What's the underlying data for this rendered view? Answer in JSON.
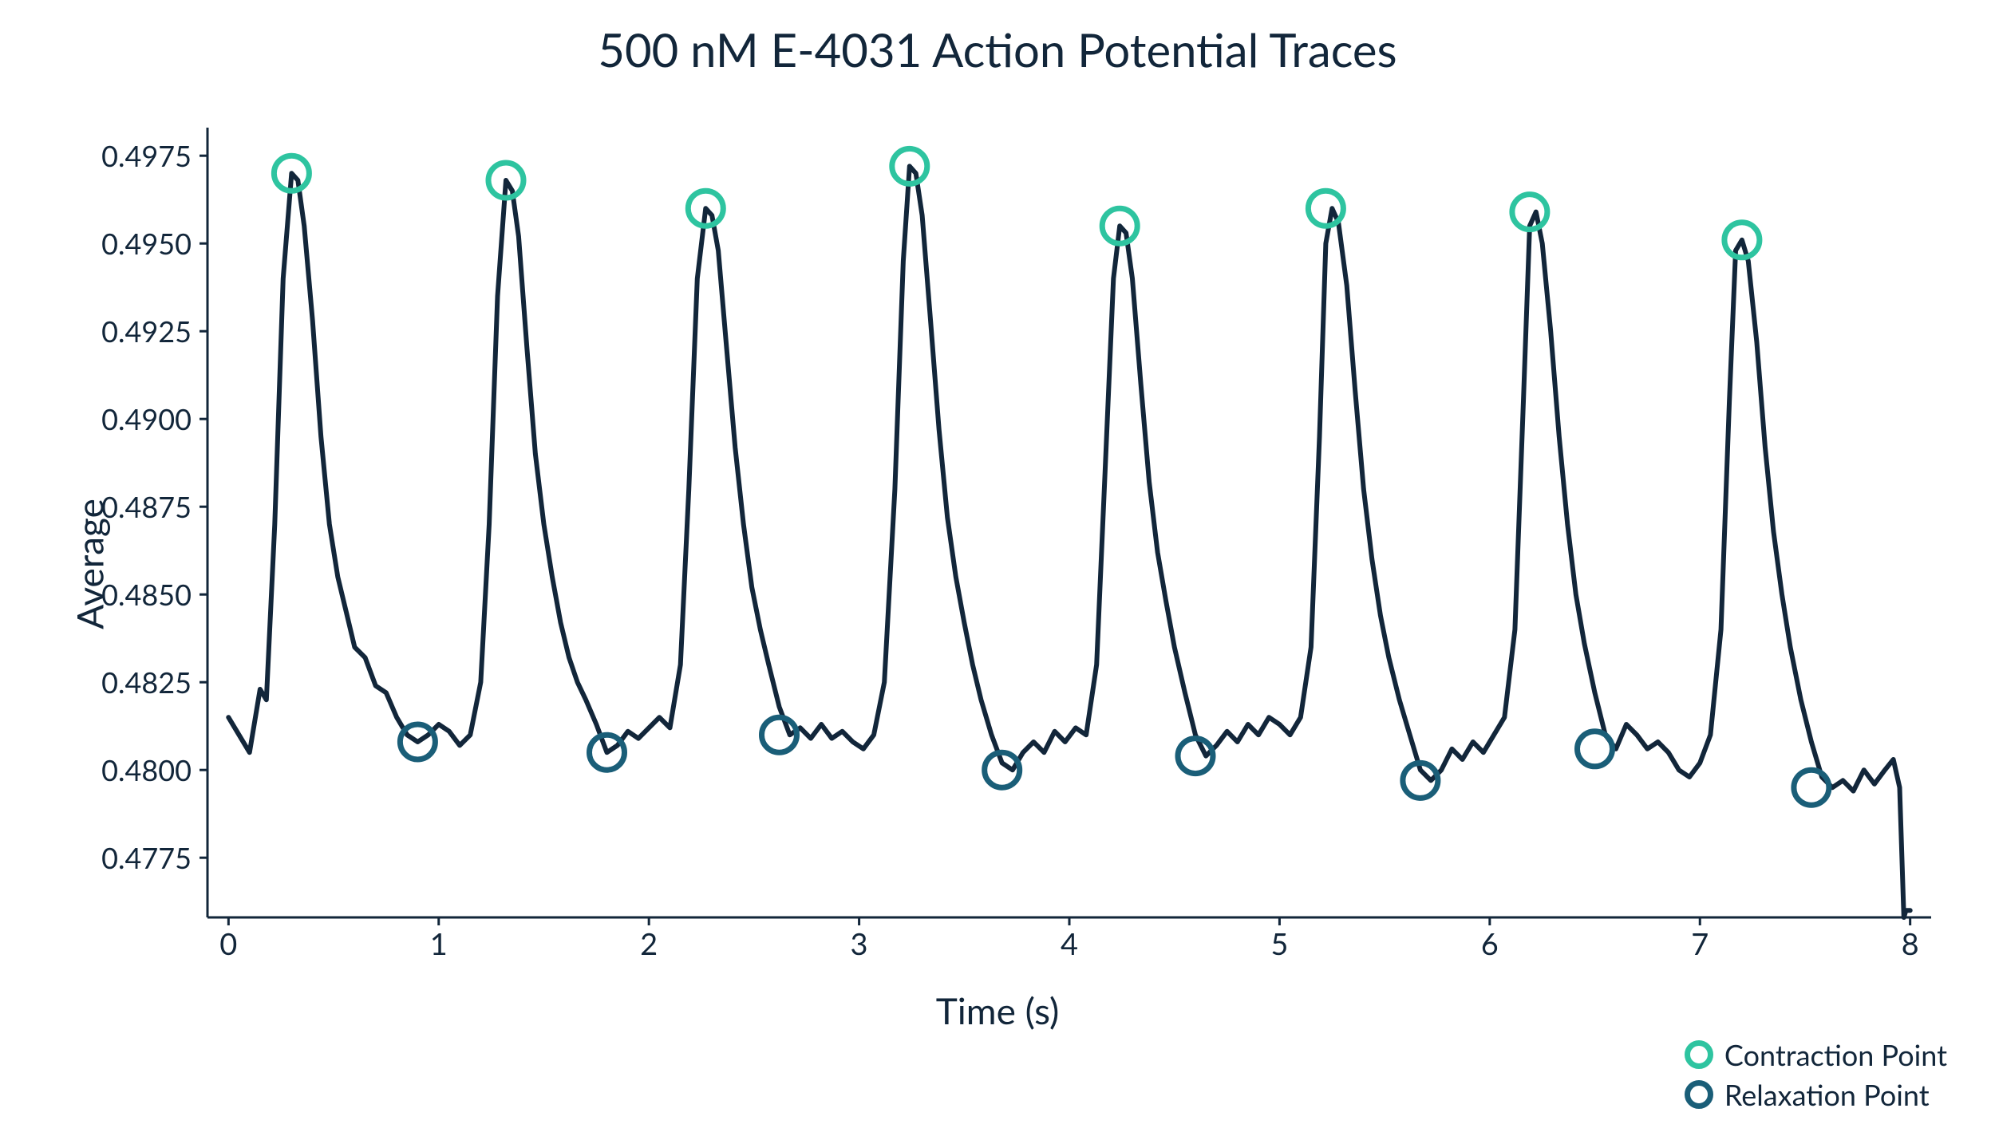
{
  "chart": {
    "type": "line",
    "title": "500 nM E-4031 Action Potential Traces",
    "title_fontsize": 58,
    "xlabel": "Time (s)",
    "ylabel": "Average",
    "label_fontsize": 46,
    "tick_fontsize": 36,
    "background_color": "#ffffff",
    "text_color": "#12263a",
    "axis_color": "#12263a",
    "line_color": "#12263a",
    "line_width": 6,
    "xlim": [
      -0.1,
      8.1
    ],
    "ylim": [
      0.4758,
      0.4983
    ],
    "xticks": [
      0,
      1,
      2,
      3,
      4,
      5,
      6,
      7,
      8
    ],
    "xtick_labels": [
      "0",
      "1",
      "2",
      "3",
      "4",
      "5",
      "6",
      "7",
      "8"
    ],
    "yticks": [
      0.4775,
      0.48,
      0.4825,
      0.485,
      0.4875,
      0.49,
      0.4925,
      0.495,
      0.4975
    ],
    "ytick_labels": [
      "0.4775",
      "0.4800",
      "0.4825",
      "0.4850",
      "0.4875",
      "0.4900",
      "0.4925",
      "0.4950",
      "0.4975"
    ],
    "tick_length": 10,
    "trace": {
      "x": [
        0.0,
        0.05,
        0.1,
        0.15,
        0.18,
        0.22,
        0.26,
        0.3,
        0.33,
        0.36,
        0.4,
        0.44,
        0.48,
        0.52,
        0.56,
        0.6,
        0.65,
        0.7,
        0.75,
        0.8,
        0.85,
        0.9,
        0.95,
        1.0,
        1.05,
        1.1,
        1.15,
        1.2,
        1.24,
        1.28,
        1.32,
        1.35,
        1.38,
        1.42,
        1.46,
        1.5,
        1.54,
        1.58,
        1.62,
        1.66,
        1.7,
        1.75,
        1.8,
        1.85,
        1.9,
        1.95,
        2.0,
        2.05,
        2.1,
        2.15,
        2.19,
        2.23,
        2.27,
        2.3,
        2.33,
        2.37,
        2.41,
        2.45,
        2.49,
        2.53,
        2.57,
        2.62,
        2.67,
        2.72,
        2.77,
        2.82,
        2.87,
        2.92,
        2.97,
        3.02,
        3.07,
        3.12,
        3.17,
        3.21,
        3.24,
        3.27,
        3.3,
        3.34,
        3.38,
        3.42,
        3.46,
        3.5,
        3.54,
        3.58,
        3.63,
        3.68,
        3.73,
        3.78,
        3.83,
        3.88,
        3.93,
        3.98,
        4.03,
        4.08,
        4.13,
        4.17,
        4.21,
        4.24,
        4.27,
        4.3,
        4.34,
        4.38,
        4.42,
        4.46,
        4.5,
        4.55,
        4.6,
        4.65,
        4.7,
        4.75,
        4.8,
        4.85,
        4.9,
        4.95,
        5.0,
        5.05,
        5.1,
        5.15,
        5.19,
        5.22,
        5.25,
        5.28,
        5.32,
        5.36,
        5.4,
        5.44,
        5.48,
        5.52,
        5.57,
        5.62,
        5.67,
        5.72,
        5.77,
        5.82,
        5.87,
        5.92,
        5.97,
        6.02,
        6.07,
        6.12,
        6.16,
        6.19,
        6.22,
        6.25,
        6.29,
        6.33,
        6.37,
        6.41,
        6.45,
        6.5,
        6.55,
        6.6,
        6.65,
        6.7,
        6.75,
        6.8,
        6.85,
        6.9,
        6.95,
        7.0,
        7.05,
        7.1,
        7.14,
        7.17,
        7.2,
        7.23,
        7.27,
        7.31,
        7.35,
        7.39,
        7.43,
        7.48,
        7.53,
        7.58,
        7.63,
        7.68,
        7.73,
        7.78,
        7.83,
        7.88,
        7.92,
        7.95,
        7.97,
        7.98,
        8.0
      ],
      "y": [
        0.4815,
        0.481,
        0.4805,
        0.4823,
        0.482,
        0.487,
        0.494,
        0.497,
        0.4968,
        0.4955,
        0.4928,
        0.4895,
        0.487,
        0.4855,
        0.4845,
        0.4835,
        0.4832,
        0.4824,
        0.4822,
        0.4815,
        0.481,
        0.4808,
        0.481,
        0.4813,
        0.4811,
        0.4807,
        0.481,
        0.4825,
        0.487,
        0.4935,
        0.4968,
        0.4965,
        0.4952,
        0.492,
        0.489,
        0.487,
        0.4855,
        0.4842,
        0.4832,
        0.4825,
        0.482,
        0.4813,
        0.4805,
        0.4807,
        0.4811,
        0.4809,
        0.4812,
        0.4815,
        0.4812,
        0.483,
        0.488,
        0.494,
        0.496,
        0.4958,
        0.4948,
        0.492,
        0.4892,
        0.487,
        0.4852,
        0.484,
        0.483,
        0.4818,
        0.481,
        0.4812,
        0.4809,
        0.4813,
        0.4809,
        0.4811,
        0.4808,
        0.4806,
        0.481,
        0.4825,
        0.488,
        0.4945,
        0.4972,
        0.497,
        0.4958,
        0.4928,
        0.4897,
        0.4872,
        0.4855,
        0.4842,
        0.483,
        0.482,
        0.481,
        0.4802,
        0.48,
        0.4805,
        0.4808,
        0.4805,
        0.4811,
        0.4808,
        0.4812,
        0.481,
        0.483,
        0.4885,
        0.494,
        0.4955,
        0.4953,
        0.494,
        0.491,
        0.4882,
        0.4862,
        0.4848,
        0.4835,
        0.4822,
        0.481,
        0.4804,
        0.4807,
        0.4811,
        0.4808,
        0.4813,
        0.481,
        0.4815,
        0.4813,
        0.481,
        0.4815,
        0.4835,
        0.4895,
        0.495,
        0.496,
        0.4956,
        0.4938,
        0.4908,
        0.488,
        0.486,
        0.4844,
        0.4832,
        0.482,
        0.481,
        0.48,
        0.4797,
        0.48,
        0.4806,
        0.4803,
        0.4808,
        0.4805,
        0.481,
        0.4815,
        0.484,
        0.4905,
        0.4955,
        0.4959,
        0.495,
        0.4925,
        0.4895,
        0.487,
        0.485,
        0.4836,
        0.4822,
        0.481,
        0.4806,
        0.4813,
        0.481,
        0.4806,
        0.4808,
        0.4805,
        0.48,
        0.4798,
        0.4802,
        0.481,
        0.484,
        0.4905,
        0.4948,
        0.4951,
        0.4945,
        0.4922,
        0.4892,
        0.4868,
        0.485,
        0.4835,
        0.482,
        0.4808,
        0.4798,
        0.4795,
        0.4797,
        0.4794,
        0.48,
        0.4796,
        0.48,
        0.4803,
        0.4795,
        0.4758,
        0.476,
        0.476
      ]
    },
    "contraction_points": {
      "color": "#2ec4a0",
      "marker_radius": 22,
      "marker_stroke": 7,
      "points": [
        {
          "x": 0.3,
          "y": 0.497
        },
        {
          "x": 1.32,
          "y": 0.4968
        },
        {
          "x": 2.27,
          "y": 0.496
        },
        {
          "x": 3.24,
          "y": 0.4972
        },
        {
          "x": 4.24,
          "y": 0.4955
        },
        {
          "x": 5.22,
          "y": 0.496
        },
        {
          "x": 6.19,
          "y": 0.4959
        },
        {
          "x": 7.2,
          "y": 0.4951
        }
      ]
    },
    "relaxation_points": {
      "color": "#1a5e78",
      "marker_radius": 22,
      "marker_stroke": 7,
      "points": [
        {
          "x": 0.9,
          "y": 0.4808
        },
        {
          "x": 1.8,
          "y": 0.4805
        },
        {
          "x": 2.62,
          "y": 0.481
        },
        {
          "x": 3.68,
          "y": 0.48
        },
        {
          "x": 4.6,
          "y": 0.4804
        },
        {
          "x": 5.67,
          "y": 0.4797
        },
        {
          "x": 6.5,
          "y": 0.4806
        },
        {
          "x": 7.53,
          "y": 0.4795
        }
      ]
    },
    "legend": {
      "items": [
        {
          "label": "Contraction Point",
          "color": "#2ec4a0"
        },
        {
          "label": "Relaxation Point",
          "color": "#1a5e78"
        }
      ],
      "fontsize": 36
    }
  }
}
